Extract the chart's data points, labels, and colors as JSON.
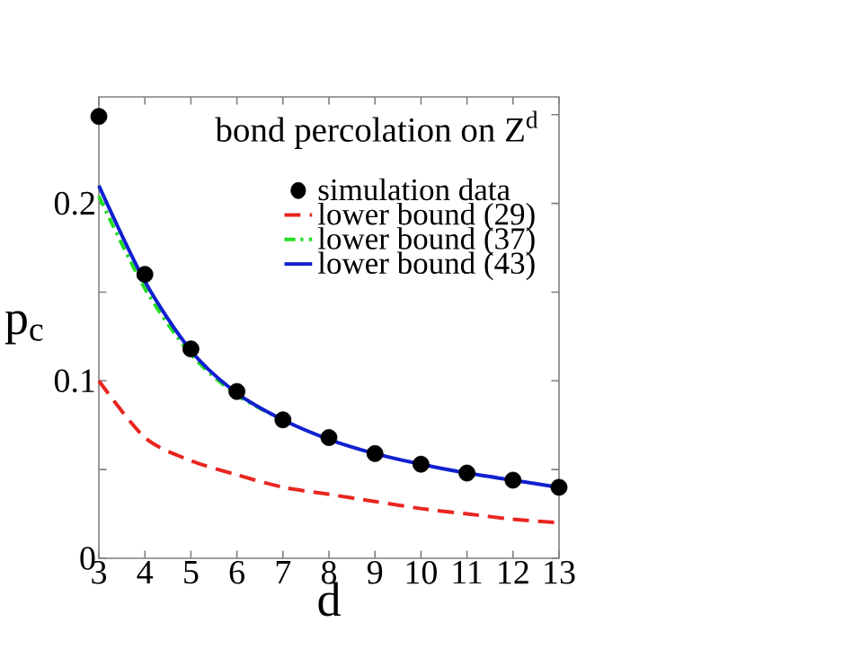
{
  "chart_data": {
    "type": "line",
    "title": "bond percolation on Z$^{d}$",
    "xlabel": "d",
    "ylabel": "p$_{c}$",
    "x": [
      3,
      4,
      5,
      6,
      7,
      8,
      9,
      10,
      11,
      12,
      13
    ],
    "xlim": [
      3,
      13
    ],
    "xticks": [
      3,
      4,
      5,
      6,
      7,
      8,
      9,
      10,
      11,
      12,
      13
    ],
    "ylim": [
      0,
      0.26
    ],
    "yticks": [
      0,
      {
        "value": 0.05,
        "label": null
      },
      0.1,
      {
        "value": 0.15,
        "label": null
      },
      0.2,
      {
        "value": 0.25,
        "label": null
      }
    ],
    "grid": false,
    "legend": "top right",
    "series": [
      {
        "name": "simulation data",
        "type": "scatter",
        "color": "#000000",
        "values": [
          0.249,
          0.16,
          0.118,
          0.094,
          0.078,
          0.068,
          0.059,
          0.053,
          0.048,
          0.044,
          0.04
        ]
      },
      {
        "name": "lower bound (29)",
        "color": "#e8251f",
        "line_style": "dashed",
        "values": [
          0.1,
          0.068,
          0.055,
          0.047,
          0.04,
          0.036,
          0.032,
          0.028,
          0.025,
          0.022,
          0.02
        ]
      },
      {
        "name": "lower bound (37)",
        "color": "#22dd22",
        "line_style": "dashdotted",
        "values": [
          0.204,
          0.152,
          0.115,
          0.092,
          0.078,
          null,
          null,
          null,
          null,
          null,
          null
        ]
      },
      {
        "name": "lower bound (43)",
        "color": "#1020d0",
        "line_style": "solid",
        "values": [
          0.21,
          0.156,
          0.117,
          0.093,
          0.078,
          0.067,
          0.059,
          0.053,
          0.048,
          0.044,
          0.04
        ]
      }
    ]
  }
}
